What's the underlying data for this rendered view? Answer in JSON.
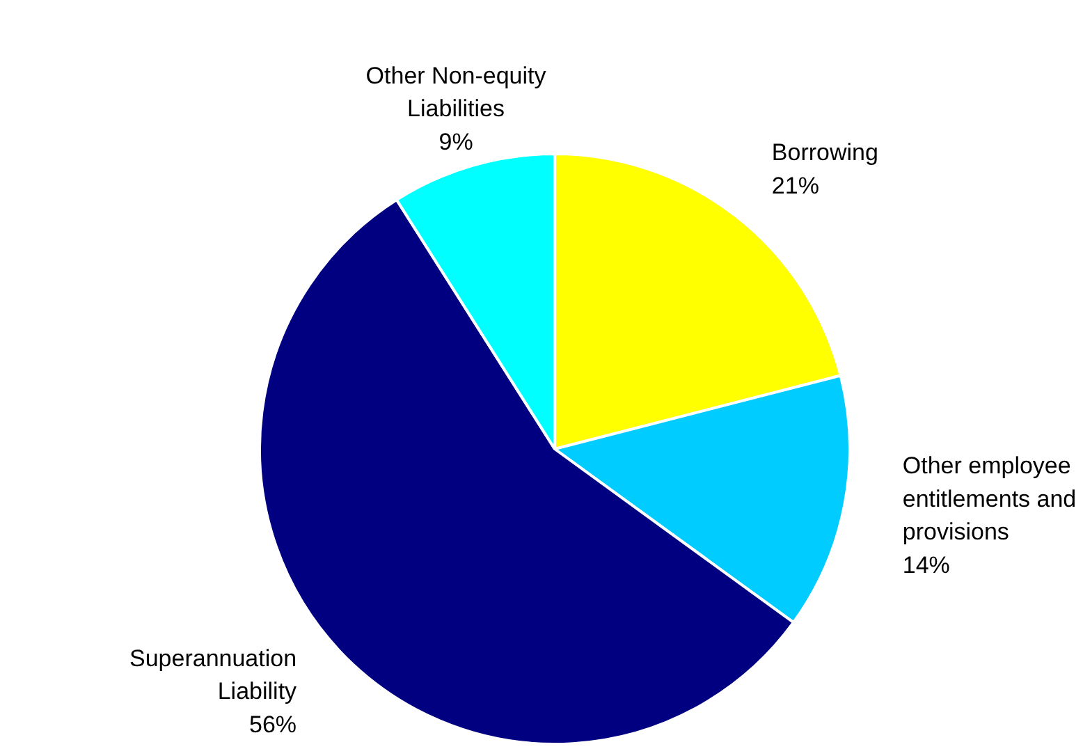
{
  "chart_data": {
    "type": "pie",
    "categories": [
      "Borrowing",
      "Other employee entitlements and provisions",
      "Superannuation Liability",
      "Other Non-equity Liabilities"
    ],
    "values": [
      21,
      14,
      56,
      9
    ],
    "value_labels": [
      "21%",
      "14%",
      "56%",
      "9%"
    ],
    "colors": [
      "#ffff00",
      "#00ccff",
      "#000080",
      "#00ffff"
    ]
  }
}
